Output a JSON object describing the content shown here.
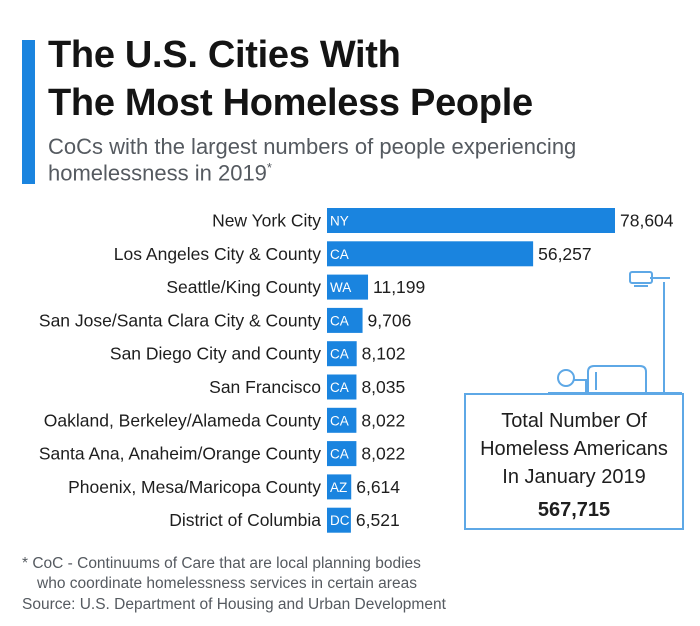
{
  "header": {
    "title_line1": "The U.S. Cities With",
    "title_line2": "The Most Homeless People",
    "subtitle_line1": "CoCs with the largest numbers of people experiencing",
    "subtitle_line2": "homelessness in 2019",
    "subtitle_mark": "*"
  },
  "chart_data": {
    "type": "bar",
    "orientation": "horizontal",
    "title": "The U.S. Cities With The Most Homeless People",
    "subtitle": "CoCs with the largest numbers of people experiencing homelessness in 2019*",
    "categories": [
      "New York City",
      "Los Angeles City & County",
      "Seattle/King County",
      "San Jose/Santa Clara City & County",
      "San Diego City and County",
      "San Francisco",
      "Oakland, Berkeley/Alameda County",
      "Santa Ana, Anaheim/Orange County",
      "Phoenix, Mesa/Maricopa County",
      "District of Columbia"
    ],
    "states": [
      "NY",
      "CA",
      "WA",
      "CA",
      "CA",
      "CA",
      "CA",
      "CA",
      "AZ",
      "DC"
    ],
    "values": [
      78604,
      56257,
      11199,
      9706,
      8102,
      8035,
      8022,
      8022,
      6614,
      6521
    ],
    "value_labels": [
      "78,604",
      "56,257",
      "11,199",
      "9,706",
      "8,102",
      "8,035",
      "8,022",
      "8,022",
      "6,614",
      "6,521"
    ],
    "xlim": [
      0,
      78604
    ],
    "xlabel": "",
    "ylabel": "",
    "grid": false,
    "bar_color": "#1a84df"
  },
  "total": {
    "label": "Total Number Of Homeless Americans In January 2019",
    "value": "567,715"
  },
  "footer": {
    "note_line1": "* CoC - Continuums of Care that are local planning bodies",
    "note_line2": "who coordinate homelessness services in certain areas",
    "source": "Source: U.S. Department of Housing and Urban Development"
  },
  "colors": {
    "accent": "#1a84df",
    "bar": "#1a84df",
    "box_border": "#5ea8e6"
  }
}
